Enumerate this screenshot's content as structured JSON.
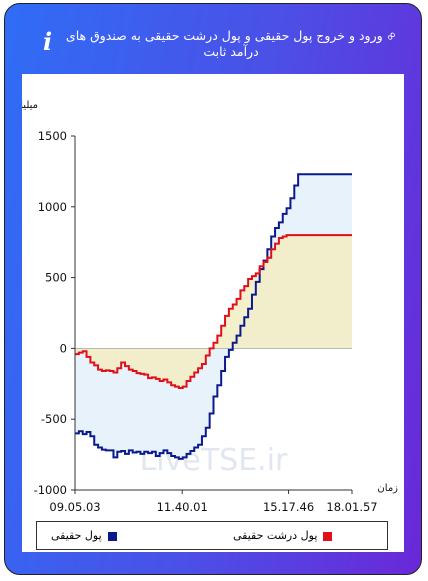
{
  "header": {
    "title": "ورود و خروج پول حقیقی و پول درشت حقیقی به صندوق های درآمد ثابت",
    "info_glyph": "i"
  },
  "watermark": "LiveTSE.ir",
  "chart_data": {
    "type": "line",
    "ylabel": "میلیارد تومان",
    "xlabel": "زمان",
    "ylim": [
      -1000,
      1500
    ],
    "yticks": [
      -1000,
      -500,
      0,
      500,
      1000,
      1500
    ],
    "x_tick_labels": [
      "09.05.03",
      "11.40.01",
      "15.17.46",
      "18.01.57"
    ],
    "grid": false,
    "area_fill_to_zero": true,
    "legend_position": "bottom",
    "series": [
      {
        "name": "پول حقیقی",
        "color": "#0a1a8c",
        "fill": "#e8f2fb",
        "values": [
          -600,
          -585,
          -605,
          -590,
          -620,
          -680,
          -700,
          -715,
          -720,
          -720,
          -770,
          -730,
          -725,
          -745,
          -720,
          -735,
          -730,
          -745,
          -730,
          -740,
          -730,
          -760,
          -740,
          -720,
          -740,
          -760,
          -770,
          -780,
          -770,
          -745,
          -725,
          -700,
          -680,
          -620,
          -560,
          -460,
          -340,
          -260,
          -160,
          -60,
          -10,
          40,
          90,
          160,
          220,
          280,
          380,
          470,
          560,
          620,
          700,
          790,
          850,
          890,
          950,
          990,
          1060,
          1150,
          1230,
          1230,
          1230,
          1230,
          1230,
          1230,
          1230,
          1230,
          1230,
          1230,
          1230,
          1230,
          1230,
          1230,
          1230
        ]
      },
      {
        "name": "پول درشت حقیقی",
        "color": "#e0101a",
        "fill": "#f3edc3",
        "values": [
          -40,
          -30,
          -20,
          -60,
          -100,
          -120,
          -150,
          -160,
          -155,
          -160,
          -170,
          -140,
          -100,
          -125,
          -150,
          -160,
          -175,
          -180,
          -185,
          -210,
          -205,
          -215,
          -230,
          -220,
          -240,
          -260,
          -270,
          -280,
          -270,
          -230,
          -200,
          -170,
          -140,
          -110,
          -50,
          0,
          40,
          90,
          160,
          230,
          280,
          310,
          350,
          410,
          440,
          490,
          510,
          530,
          580,
          610,
          640,
          700,
          740,
          780,
          790,
          800,
          800,
          800,
          800,
          800,
          800,
          800,
          800,
          800,
          800,
          800,
          800,
          800,
          800,
          800,
          800,
          800,
          800
        ]
      }
    ]
  }
}
